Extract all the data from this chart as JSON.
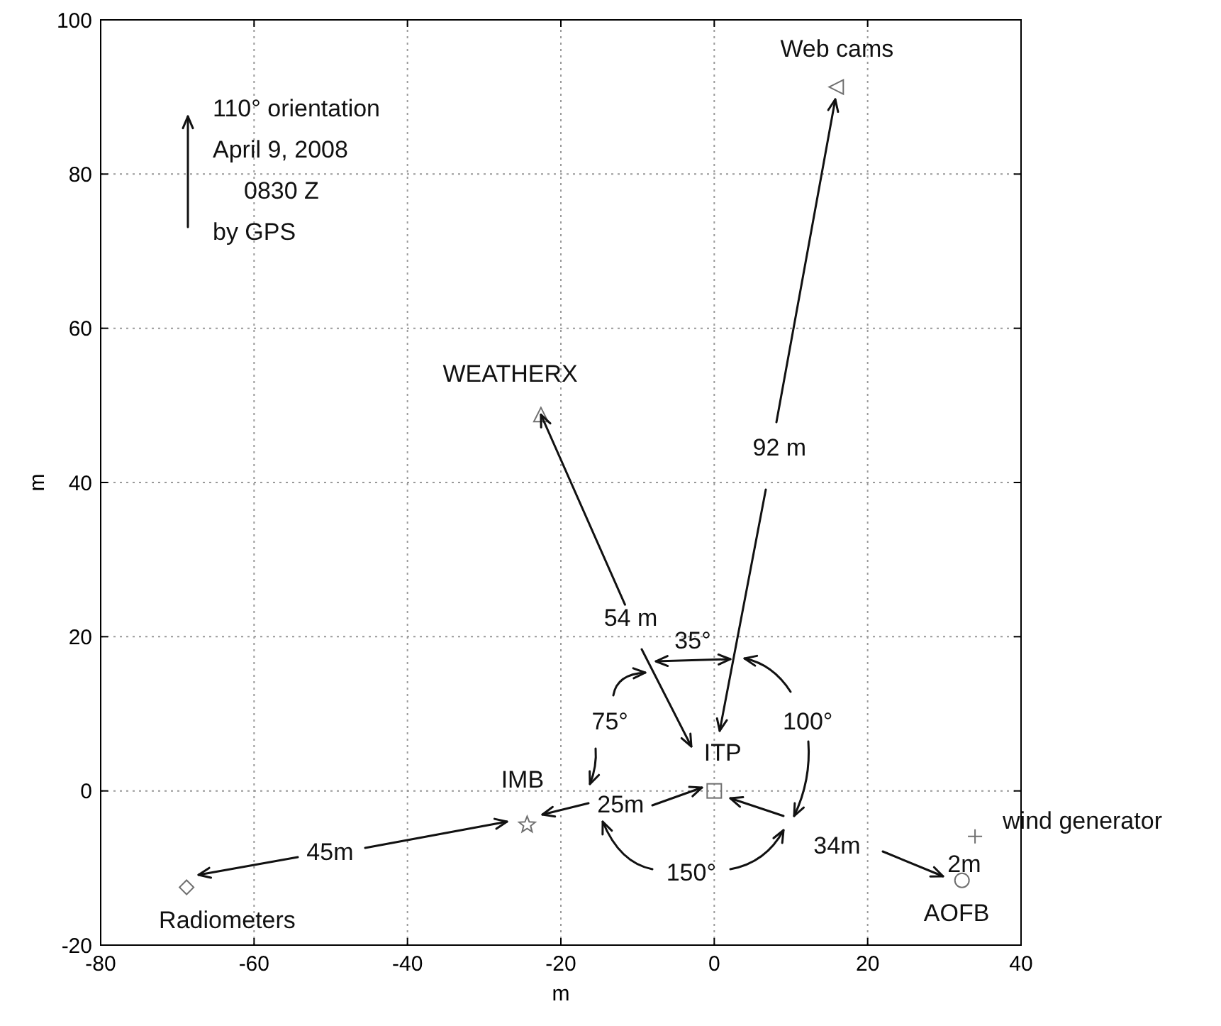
{
  "chart_data": {
    "type": "scatter",
    "xlabel": "m",
    "ylabel": "m",
    "xlim": [
      -80,
      40
    ],
    "ylim": [
      -20,
      100
    ],
    "xticks": [
      -80,
      -60,
      -40,
      -20,
      0,
      20,
      40
    ],
    "yticks": [
      -20,
      0,
      20,
      40,
      60,
      80,
      100
    ],
    "grid": true,
    "series": [
      {
        "marker": "square",
        "color": "#707070",
        "x": [
          0
        ],
        "values": [
          0
        ]
      },
      {
        "marker": "star",
        "color": "#707070",
        "x": [
          -24.4
        ],
        "values": [
          -4.4
        ]
      },
      {
        "marker": "diamond",
        "color": "#707070",
        "x": [
          -68.8
        ],
        "values": [
          -12.5
        ]
      },
      {
        "marker": "triangle",
        "color": "#707070",
        "x": [
          -22.6
        ],
        "values": [
          48.8
        ]
      },
      {
        "marker": "triangle-left",
        "color": "#707070",
        "x": [
          15.9
        ],
        "values": [
          91.3
        ]
      },
      {
        "marker": "circle",
        "color": "#707070",
        "x": [
          32.3
        ],
        "values": [
          -11.6
        ]
      },
      {
        "marker": "cross",
        "color": "#707070",
        "x": [
          34
        ],
        "values": [
          -5.9
        ]
      }
    ],
    "annotations": [
      "110° orientation",
      "April 9, 2008",
      "0830 Z",
      "by GPS",
      "Web cams",
      "WEATHERX",
      "92 m",
      {
        "text": "54 m",
        "x": -22.6,
        "y": 48.8
      },
      "35°",
      "75°",
      "100°",
      "ITP",
      "IMB",
      "25m",
      "34m",
      "150°",
      "45m",
      "2m",
      "wind generator",
      "Radiometers",
      "AOFB"
    ]
  }
}
